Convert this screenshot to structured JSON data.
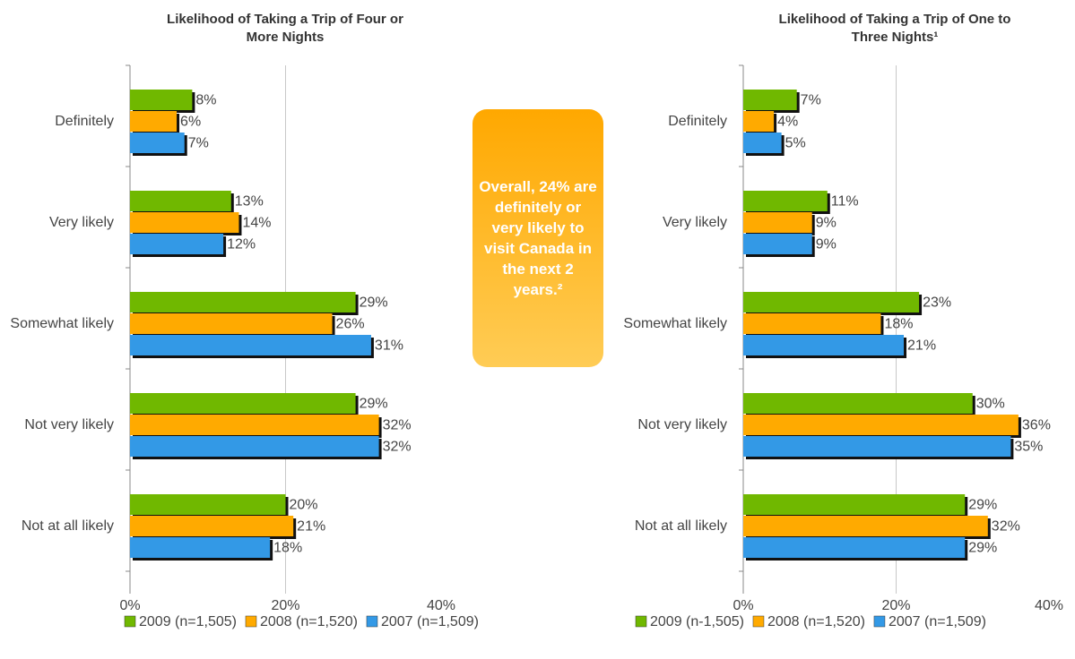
{
  "chart_data": [
    {
      "type": "bar",
      "title": "Likelihood of Taking a Trip of Four or More Nights",
      "categories": [
        "Definitely",
        "Very likely",
        "Somewhat likely",
        "Not very likely",
        "Not at all likely"
      ],
      "series": [
        {
          "name": "2009 (n=1,505)",
          "color": "#70b800",
          "values": [
            8,
            13,
            29,
            29,
            20
          ],
          "value_labels": [
            "8%",
            "13%",
            "29%",
            "29%",
            "20%"
          ]
        },
        {
          "name": "2008 (n=1,520)",
          "color": "#ffaa00",
          "values": [
            6,
            14,
            26,
            32,
            21
          ],
          "value_labels": [
            "6%",
            "14%",
            "26%",
            "32%",
            "21%"
          ]
        },
        {
          "name": "2007 (n=1,509)",
          "color": "#3399e6",
          "values": [
            7,
            12,
            31,
            32,
            18
          ],
          "value_labels": [
            "7%",
            "12%",
            "31%",
            "32%",
            "18%"
          ]
        }
      ],
      "xlim": [
        0,
        40
      ],
      "xticks": [
        {
          "value": 0,
          "label": "0%"
        },
        {
          "value": 20,
          "label": "20%"
        },
        {
          "value": 40,
          "label": "40%"
        }
      ],
      "grid": true,
      "legend": "bottom"
    },
    {
      "type": "bar",
      "title": "Likelihood of Taking a Trip of One to Three Nights¹",
      "categories": [
        "Definitely",
        "Very likely",
        "Somewhat likely",
        "Not very likely",
        "Not at all likely"
      ],
      "series": [
        {
          "name": "2009 (n-1,505)",
          "color": "#70b800",
          "values": [
            7,
            11,
            23,
            30,
            29
          ],
          "value_labels": [
            "7%",
            "11%",
            "23%",
            "30%",
            "29%"
          ]
        },
        {
          "name": "2008 (n=1,520)",
          "color": "#ffaa00",
          "values": [
            4,
            9,
            18,
            36,
            32
          ],
          "value_labels": [
            "4%",
            "9%",
            "18%",
            "36%",
            "32%"
          ]
        },
        {
          "name": "2007 (n=1,509)",
          "color": "#3399e6",
          "values": [
            5,
            9,
            21,
            35,
            29
          ],
          "value_labels": [
            "5%",
            "9%",
            "21%",
            "35%",
            "29%"
          ]
        }
      ],
      "xlim": [
        0,
        40
      ],
      "xticks": [
        {
          "value": 0,
          "label": "0%"
        },
        {
          "value": 20,
          "label": "20%"
        },
        {
          "value": 40,
          "label": "40%"
        }
      ],
      "grid": true,
      "legend": "bottom"
    }
  ],
  "callout": "Overall, 24% are definitely or very likely to visit Canada in the next 2 years.²"
}
